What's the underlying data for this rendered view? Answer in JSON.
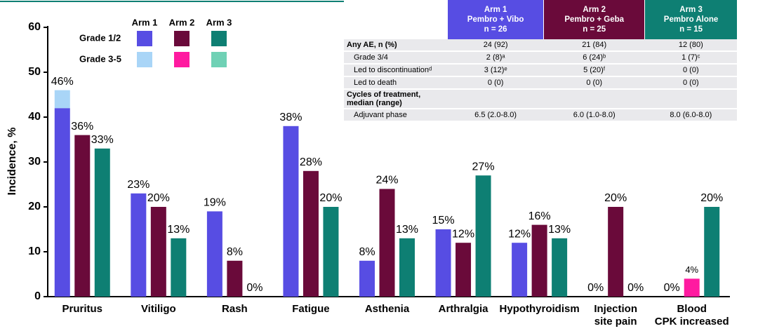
{
  "chart_data": {
    "type": "bar",
    "y_label": "Incidence, %",
    "categories": [
      [
        "Pruritus"
      ],
      [
        "Vitiligo"
      ],
      [
        "Rash"
      ],
      [
        "Fatigue"
      ],
      [
        "Asthenia"
      ],
      [
        "Arthralgia"
      ],
      [
        "Hypothyroidism"
      ],
      [
        "Injection",
        "site pain"
      ],
      [
        "Blood",
        "CPK increased"
      ]
    ],
    "grades": [
      "Grade 1/2",
      "Grade 3-5"
    ],
    "series": [
      {
        "name": "Arm 1",
        "stacks": [
          {
            "color": "#574de3",
            "values": [
              42,
              23,
              19,
              38,
              8,
              15,
              12,
              0,
              0
            ]
          },
          {
            "color": "#a9d5f7",
            "values": [
              4,
              0,
              0,
              0,
              0,
              0,
              0,
              0,
              0
            ]
          }
        ],
        "total_labels": [
          "46%",
          "23%",
          "19%",
          "38%",
          "8%",
          "15%",
          "12%",
          "0%",
          "0%"
        ]
      },
      {
        "name": "Arm 2",
        "stacks": [
          {
            "color": "#6a0a3a",
            "values": [
              36,
              20,
              8,
              28,
              24,
              12,
              16,
              20,
              0
            ]
          },
          {
            "color": "#ff1aa0",
            "values": [
              0,
              0,
              0,
              0,
              0,
              0,
              0,
              0,
              4
            ]
          }
        ],
        "total_labels": [
          "36%",
          "20%",
          "8%",
          "28%",
          "24%",
          "12%",
          "16%",
          "20%",
          "4%"
        ]
      },
      {
        "name": "Arm 3",
        "stacks": [
          {
            "color": "#0e7f73",
            "values": [
              33,
              13,
              0,
              20,
              13,
              27,
              13,
              0,
              20
            ]
          },
          {
            "color": "#6fd1b5",
            "values": [
              0,
              0,
              0,
              0,
              0,
              0,
              0,
              0,
              0
            ]
          }
        ],
        "total_labels": [
          "33%",
          "13%",
          "0%",
          "20%",
          "13%",
          "27%",
          "13%",
          "0%",
          "20%"
        ]
      }
    ],
    "ylim": [
      0,
      60
    ],
    "yticks": [
      0,
      10,
      20,
      30,
      40,
      50,
      60
    ]
  },
  "table": {
    "columns": [
      {
        "lines": [
          "Arm 1",
          "Pembro + Vibo",
          "n = 26"
        ],
        "color": "#574de3"
      },
      {
        "lines": [
          "Arm 2",
          "Pembro + Geba",
          "n = 25"
        ],
        "color": "#6a0a3a"
      },
      {
        "lines": [
          "Arm 3",
          "Pembro Alone",
          "n = 15"
        ],
        "color": "#0e7f73"
      }
    ],
    "rows": [
      {
        "label": [
          "Any AE, n (%)"
        ],
        "bold": true,
        "cells": [
          "24 (92)",
          "21 (84)",
          "12 (80)"
        ]
      },
      {
        "label": [
          "Grade 3/4"
        ],
        "cells": [
          "2 (8)ᵃ",
          "6 (24)ᵇ",
          "1 (7)ᶜ"
        ]
      },
      {
        "label": [
          "Led to discontinuationᵈ"
        ],
        "cells": [
          "3 (12)ᵉ",
          "5 (20)ᶠ",
          "0 (0)"
        ]
      },
      {
        "label": [
          "Led to death"
        ],
        "cells": [
          "0 (0)",
          "0 (0)",
          "0 (0)"
        ]
      },
      {
        "label": [
          "Cycles of treatment,",
          "median (range)"
        ],
        "bold": true,
        "cells": []
      },
      {
        "label": [
          "Adjuvant phase"
        ],
        "cells": [
          "6.5 (2.0-8.0)",
          "6.0 (1.0-8.0)",
          "8.0 (6.0-8.0)"
        ]
      }
    ]
  }
}
